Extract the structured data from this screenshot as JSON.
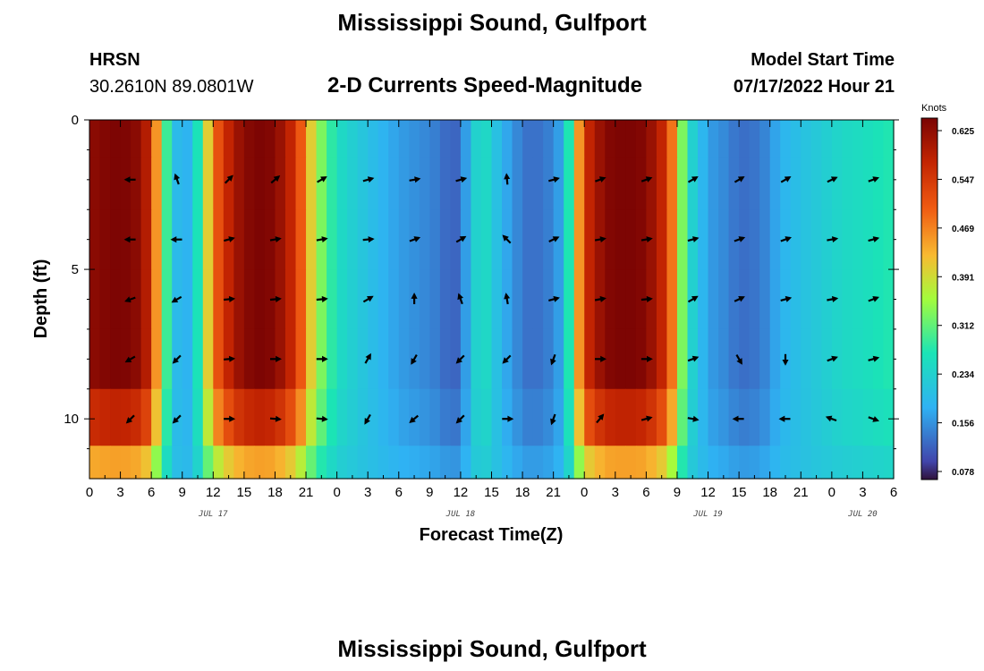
{
  "header": {
    "title": "Mississippi Sound, Gulfport",
    "station_id": "HRSN",
    "station_coords": "30.2610N  89.0801W",
    "subtitle": "2-D Currents Speed-Magnitude",
    "model_start_label": "Model Start Time",
    "model_start_value": "07/17/2022 Hour 21"
  },
  "footer": {
    "repeated_title": "Mississippi Sound, Gulfport"
  },
  "chart_data": {
    "type": "heatmap",
    "title": "2-D Currents Speed-Magnitude",
    "xlabel": "Forecast Time(Z)",
    "ylabel": "Depth (ft)",
    "x_tick_labels": [
      "0",
      "3",
      "6",
      "9",
      "12",
      "15",
      "18",
      "21",
      "0",
      "3",
      "6",
      "9",
      "12",
      "15",
      "18",
      "21",
      "0",
      "3",
      "6",
      "9",
      "12",
      "15",
      "18",
      "21",
      "0",
      "3",
      "6"
    ],
    "x_hours": [
      0,
      3,
      6,
      9,
      12,
      15,
      18,
      21,
      24,
      27,
      30,
      33,
      36,
      39,
      42,
      45,
      48,
      51,
      54,
      57,
      60,
      63,
      66,
      69,
      72,
      75,
      78
    ],
    "x_range_hours": [
      0,
      78
    ],
    "date_labels": [
      {
        "text": "JUL 17",
        "hour": 12
      },
      {
        "text": "JUL 18",
        "hour": 36
      },
      {
        "text": "JUL 19",
        "hour": 60
      },
      {
        "text": "JUL 20",
        "hour": 75
      }
    ],
    "y_tick_labels": [
      "0",
      "5",
      "10"
    ],
    "y_ticks": [
      0,
      5,
      10
    ],
    "y_range_ft": [
      0,
      12
    ],
    "colorbar": {
      "unit": "Knots",
      "ticks": [
        "0.625",
        "0.547",
        "0.469",
        "0.391",
        "0.312",
        "0.234",
        "0.156",
        "0.078"
      ],
      "range": [
        0.06,
        0.64
      ]
    },
    "depth_rows_ft": [
      0.5,
      2,
      4,
      6,
      8,
      10,
      11.8
    ],
    "speed_profile": [
      [
        0,
        0.62
      ],
      [
        1,
        0.63
      ],
      [
        3,
        0.64
      ],
      [
        5,
        0.62
      ],
      [
        6,
        0.55
      ],
      [
        7,
        0.35
      ],
      [
        8,
        0.22
      ],
      [
        9,
        0.16
      ],
      [
        10,
        0.2
      ],
      [
        11,
        0.32
      ],
      [
        12,
        0.48
      ],
      [
        14,
        0.6
      ],
      [
        16,
        0.64
      ],
      [
        18,
        0.63
      ],
      [
        20,
        0.55
      ],
      [
        21,
        0.45
      ],
      [
        22,
        0.35
      ],
      [
        24,
        0.25
      ],
      [
        27,
        0.2
      ],
      [
        30,
        0.16
      ],
      [
        33,
        0.14
      ],
      [
        34,
        0.13
      ],
      [
        35,
        0.11
      ],
      [
        36,
        0.12
      ],
      [
        37,
        0.2
      ],
      [
        38,
        0.26
      ],
      [
        40,
        0.18
      ],
      [
        42,
        0.13
      ],
      [
        43,
        0.12
      ],
      [
        45,
        0.14
      ],
      [
        46,
        0.18
      ],
      [
        47,
        0.35
      ],
      [
        48,
        0.55
      ],
      [
        50,
        0.63
      ],
      [
        52,
        0.64
      ],
      [
        54,
        0.63
      ],
      [
        56,
        0.55
      ],
      [
        57,
        0.4
      ],
      [
        58,
        0.25
      ],
      [
        60,
        0.16
      ],
      [
        62,
        0.14
      ],
      [
        63,
        0.12
      ],
      [
        65,
        0.13
      ],
      [
        66,
        0.15
      ],
      [
        67,
        0.18
      ],
      [
        69,
        0.2
      ],
      [
        71,
        0.22
      ],
      [
        73,
        0.24
      ],
      [
        75,
        0.25
      ],
      [
        78,
        0.27
      ]
    ],
    "arrow_times": [
      4,
      8.5,
      13.5,
      18,
      22.5,
      27,
      31.5,
      36,
      40.5,
      45,
      49.5,
      54,
      58.5,
      63,
      67.5,
      72,
      76
    ],
    "arrow_rows": [
      {
        "depth": 2,
        "dirs": [
          180,
          110,
          45,
          40,
          30,
          15,
          10,
          15,
          95,
          15,
          20,
          20,
          30,
          30,
          30,
          25,
          20
        ]
      },
      {
        "depth": 4,
        "dirs": [
          180,
          180,
          15,
          10,
          10,
          5,
          20,
          30,
          135,
          25,
          10,
          10,
          15,
          20,
          20,
          10,
          15
        ]
      },
      {
        "depth": 6,
        "dirs": [
          200,
          210,
          5,
          5,
          5,
          30,
          90,
          110,
          100,
          15,
          10,
          5,
          30,
          25,
          15,
          10,
          20
        ]
      },
      {
        "depth": 8,
        "dirs": [
          210,
          225,
          5,
          0,
          0,
          60,
          240,
          225,
          225,
          250,
          0,
          0,
          20,
          300,
          270,
          20,
          15
        ]
      },
      {
        "depth": 10,
        "dirs": [
          225,
          225,
          0,
          355,
          355,
          240,
          220,
          225,
          0,
          250,
          50,
          15,
          350,
          180,
          180,
          160,
          340
        ]
      }
    ]
  }
}
